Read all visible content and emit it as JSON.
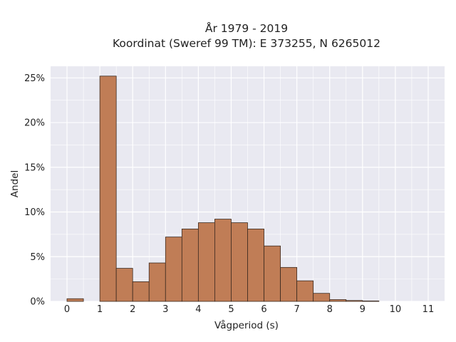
{
  "chart_data": {
    "type": "bar",
    "title_lines": [
      "År 1979 - 2019",
      "Koordinat (Sweref 99 TM): E 373255, N 6265012"
    ],
    "xlabel": "Vågperiod (s)",
    "ylabel": "Andel",
    "x_ticks": [
      "0",
      "1",
      "2",
      "3",
      "4",
      "5",
      "6",
      "7",
      "8",
      "9",
      "10",
      "11"
    ],
    "y_ticks": [
      "0%",
      "5%",
      "10%",
      "15%",
      "20%",
      "25%"
    ],
    "xlim": [
      -0.5,
      11.5
    ],
    "ylim": [
      0,
      26.3
    ],
    "bin_width": 0.5,
    "bins": [
      {
        "x0": 0.0,
        "value": 0.3
      },
      {
        "x0": 1.0,
        "value": 25.2
      },
      {
        "x0": 1.5,
        "value": 3.7
      },
      {
        "x0": 2.0,
        "value": 2.2
      },
      {
        "x0": 2.5,
        "value": 4.3
      },
      {
        "x0": 3.0,
        "value": 7.2
      },
      {
        "x0": 3.5,
        "value": 8.1
      },
      {
        "x0": 4.0,
        "value": 8.8
      },
      {
        "x0": 4.5,
        "value": 9.2
      },
      {
        "x0": 5.0,
        "value": 8.8
      },
      {
        "x0": 5.5,
        "value": 8.1
      },
      {
        "x0": 6.0,
        "value": 6.2
      },
      {
        "x0": 6.5,
        "value": 3.8
      },
      {
        "x0": 7.0,
        "value": 2.3
      },
      {
        "x0": 7.5,
        "value": 0.9
      },
      {
        "x0": 8.0,
        "value": 0.2
      },
      {
        "x0": 8.5,
        "value": 0.1
      },
      {
        "x0": 9.0,
        "value": 0.05
      }
    ],
    "bar_color": "#c07d56",
    "bar_edge_color": "#3b2a20",
    "plot_bg": "#e9e9f1",
    "grid": true,
    "grid_color": "#ffffff"
  }
}
